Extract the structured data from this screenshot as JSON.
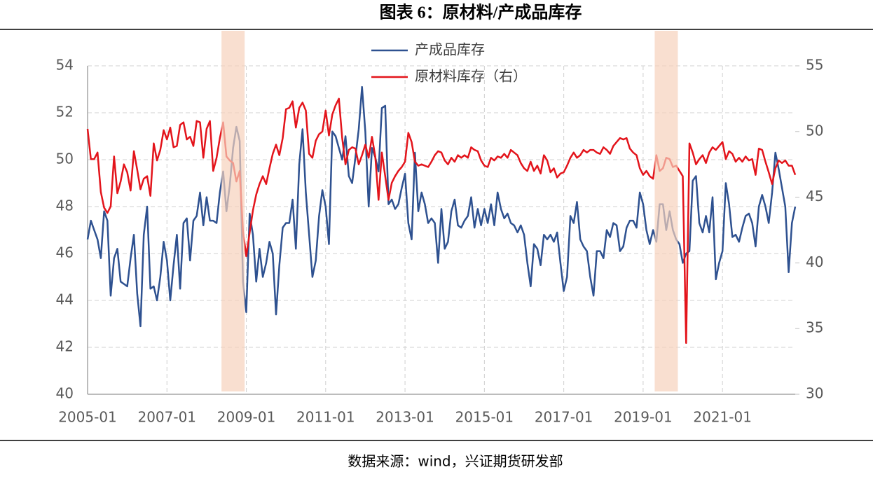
{
  "chart_data": {
    "type": "line",
    "title": "图表 6：原材料/产成品库存",
    "source": "数据来源：wind，兴证期货研发部",
    "x": [
      "2005-01",
      "2005-02",
      "2005-03",
      "2005-04",
      "2005-05",
      "2005-06",
      "2005-07",
      "2005-08",
      "2005-09",
      "2005-10",
      "2005-11",
      "2005-12",
      "2006-01",
      "2006-02",
      "2006-03",
      "2006-04",
      "2006-05",
      "2006-06",
      "2006-07",
      "2006-08",
      "2006-09",
      "2006-10",
      "2006-11",
      "2006-12",
      "2007-01",
      "2007-02",
      "2007-03",
      "2007-04",
      "2007-05",
      "2007-06",
      "2007-07",
      "2007-08",
      "2007-09",
      "2007-10",
      "2007-11",
      "2007-12",
      "2008-01",
      "2008-02",
      "2008-03",
      "2008-04",
      "2008-05",
      "2008-06",
      "2008-07",
      "2008-08",
      "2008-09",
      "2008-10",
      "2008-11",
      "2008-12",
      "2009-01",
      "2009-02",
      "2009-03",
      "2009-04",
      "2009-05",
      "2009-06",
      "2009-07",
      "2009-08",
      "2009-09",
      "2009-10",
      "2009-11",
      "2009-12",
      "2010-01",
      "2010-02",
      "2010-03",
      "2010-04",
      "2010-05",
      "2010-06",
      "2010-07",
      "2010-08",
      "2010-09",
      "2010-10",
      "2010-11",
      "2010-12",
      "2011-01",
      "2011-02",
      "2011-03",
      "2011-04",
      "2011-05",
      "2011-06",
      "2011-07",
      "2011-08",
      "2011-09",
      "2011-10",
      "2011-11",
      "2011-12",
      "2012-01",
      "2012-02",
      "2012-03",
      "2012-04",
      "2012-05",
      "2012-06",
      "2012-07",
      "2012-08",
      "2012-09",
      "2012-10",
      "2012-11",
      "2012-12",
      "2013-01",
      "2013-02",
      "2013-03",
      "2013-04",
      "2013-05",
      "2013-06",
      "2013-07",
      "2013-08",
      "2013-09",
      "2013-10",
      "2013-11",
      "2013-12",
      "2014-01",
      "2014-02",
      "2014-03",
      "2014-04",
      "2014-05",
      "2014-06",
      "2014-07",
      "2014-08",
      "2014-09",
      "2014-10",
      "2014-11",
      "2014-12",
      "2015-01",
      "2015-02",
      "2015-03",
      "2015-04",
      "2015-05",
      "2015-06",
      "2015-07",
      "2015-08",
      "2015-09",
      "2015-10",
      "2015-11",
      "2015-12",
      "2016-01",
      "2016-02",
      "2016-03",
      "2016-04",
      "2016-05",
      "2016-06",
      "2016-07",
      "2016-08",
      "2016-09",
      "2016-10",
      "2016-11",
      "2016-12",
      "2017-01",
      "2017-02",
      "2017-03",
      "2017-04",
      "2017-05",
      "2017-06",
      "2017-07",
      "2017-08",
      "2017-09",
      "2017-10",
      "2017-11",
      "2017-12",
      "2018-01",
      "2018-02",
      "2018-03",
      "2018-04",
      "2018-05",
      "2018-06",
      "2018-07",
      "2018-08",
      "2018-09",
      "2018-10",
      "2018-11",
      "2018-12",
      "2019-01",
      "2019-02",
      "2019-03",
      "2019-04",
      "2019-05",
      "2019-06",
      "2019-07",
      "2019-08",
      "2019-09",
      "2019-10",
      "2019-11",
      "2019-12",
      "2020-01",
      "2020-02",
      "2020-03",
      "2020-04",
      "2020-05",
      "2020-06",
      "2020-07",
      "2020-08",
      "2020-09",
      "2020-10",
      "2020-11",
      "2020-12",
      "2021-01",
      "2021-02",
      "2021-03",
      "2021-04",
      "2021-05",
      "2021-06",
      "2021-07",
      "2021-08",
      "2021-09",
      "2021-10",
      "2021-11",
      "2021-12",
      "2022-01",
      "2022-02",
      "2022-03",
      "2022-04",
      "2022-05",
      "2022-06",
      "2022-07",
      "2022-08",
      "2022-09",
      "2022-10",
      "2022-11"
    ],
    "xticks": [
      0,
      24,
      48,
      72,
      96,
      120,
      144,
      168,
      192
    ],
    "series": [
      {
        "name": "产成品库存",
        "color": "#2e5190",
        "axis": "y",
        "values": [
          46.6,
          47.4,
          47.0,
          46.6,
          45.8,
          47.8,
          47.4,
          44.2,
          45.8,
          46.2,
          44.8,
          44.7,
          44.6,
          45.8,
          46.8,
          44.3,
          42.9,
          46.8,
          48.0,
          44.5,
          44.6,
          44.0,
          45.0,
          46.5,
          45.7,
          44.0,
          45.5,
          46.8,
          44.5,
          47.3,
          47.5,
          45.7,
          47.4,
          47.6,
          48.6,
          47.2,
          48.4,
          47.4,
          47.4,
          47.3,
          48.6,
          49.5,
          47.8,
          48.9,
          50.5,
          51.4,
          50.8,
          44.8,
          43.5,
          47.7,
          46.8,
          44.8,
          46.2,
          45.0,
          45.6,
          46.5,
          46.0,
          43.4,
          45.5,
          47.1,
          47.3,
          47.3,
          48.3,
          46.2,
          49.8,
          51.3,
          48.6,
          46.8,
          45.0,
          45.7,
          47.6,
          48.7,
          48.0,
          46.4,
          51.2,
          51.0,
          50.5,
          50.0,
          51.0,
          49.3,
          49.0,
          50.1,
          51.3,
          53.1,
          51.2,
          48.0,
          50.5,
          50.1,
          49.5,
          52.2,
          52.3,
          48.1,
          48.3,
          47.9,
          48.1,
          48.8,
          49.4,
          47.3,
          46.6,
          50.3,
          47.8,
          48.6,
          48.1,
          47.3,
          47.5,
          47.3,
          45.6,
          47.9,
          46.2,
          46.5,
          47.8,
          48.3,
          47.2,
          47.1,
          47.4,
          47.6,
          48.4,
          47.1,
          47.9,
          47.2,
          47.9,
          47.3,
          48.1,
          47.2,
          48.6,
          47.9,
          47.5,
          47.7,
          47.3,
          47.2,
          46.9,
          47.2,
          46.8,
          45.6,
          44.6,
          46.4,
          46.2,
          45.5,
          46.8,
          46.6,
          46.8,
          46.5,
          46.9,
          45.6,
          44.4,
          45.0,
          47.6,
          47.3,
          48.2,
          46.6,
          46.3,
          46.1,
          45.0,
          44.2,
          46.1,
          46.1,
          45.8,
          47.0,
          46.7,
          47.3,
          47.2,
          46.1,
          46.3,
          47.1,
          47.4,
          47.4,
          47.1,
          48.6,
          48.1,
          47.0,
          46.4,
          47.0,
          46.5,
          48.1,
          48.1,
          47.0,
          47.8,
          47.0,
          46.6,
          46.4,
          45.6,
          46.0,
          46.1,
          49.1,
          49.3,
          47.3,
          46.9,
          47.6,
          46.9,
          48.4,
          44.9,
          45.6,
          46.1,
          49.0,
          48.1,
          46.7,
          46.8,
          46.5,
          47.1,
          47.6,
          47.7,
          47.3,
          46.3,
          48.0,
          48.5,
          48.0,
          47.3,
          48.6,
          50.3,
          49.6,
          48.8,
          48.0,
          45.2,
          47.3,
          48.0
        ]
      },
      {
        "name": "原材料库存（右）",
        "color": "#e3141b",
        "axis": "y2",
        "values": [
          50.2,
          47.9,
          47.9,
          48.4,
          45.4,
          44.2,
          43.8,
          44.3,
          48.1,
          45.3,
          46.2,
          47.5,
          46.9,
          45.5,
          48.5,
          47.1,
          45.6,
          46.4,
          46.6,
          45.1,
          49.1,
          47.8,
          48.6,
          50.1,
          49.4,
          50.3,
          48.8,
          48.9,
          50.5,
          50.7,
          49.4,
          49.6,
          48.9,
          50.8,
          50.7,
          48.0,
          50.2,
          50.8,
          47.0,
          48.0,
          49.5,
          50.7,
          48.1,
          47.8,
          47.6,
          46.2,
          47.0,
          42.4,
          40.5,
          42.3,
          44.0,
          45.2,
          46.0,
          46.6,
          46.0,
          47.2,
          48.3,
          49.0,
          48.2,
          49.5,
          51.7,
          51.8,
          52.3,
          50.3,
          51.8,
          52.2,
          51.6,
          48.3,
          48.0,
          49.3,
          49.8,
          50.0,
          51.6,
          49.7,
          51.3,
          52.0,
          52.5,
          49.5,
          47.5,
          48.6,
          48.8,
          48.7,
          47.5,
          48.2,
          49.0,
          48.0,
          49.6,
          48.1,
          44.8,
          48.4,
          46.6,
          44.8,
          46.1,
          46.6,
          47.0,
          47.3,
          47.7,
          49.9,
          49.2,
          47.7,
          47.4,
          47.5,
          47.4,
          47.3,
          47.7,
          48.2,
          48.5,
          48.4,
          47.8,
          47.5,
          48.0,
          47.7,
          48.2,
          48.0,
          48.2,
          48.0,
          48.8,
          48.6,
          48.5,
          47.8,
          47.4,
          47.3,
          48.0,
          47.8,
          48.1,
          48.0,
          48.3,
          48.0,
          48.6,
          48.4,
          48.2,
          47.6,
          47.2,
          47.0,
          47.7,
          47.0,
          47.4,
          46.8,
          48.2,
          47.8,
          46.9,
          47.2,
          46.5,
          46.8,
          46.9,
          47.4,
          48.0,
          48.4,
          48.0,
          48.2,
          48.6,
          48.4,
          48.6,
          48.6,
          48.4,
          48.3,
          48.8,
          48.6,
          48.3,
          48.9,
          49.2,
          49.5,
          49.4,
          49.5,
          48.7,
          48.4,
          48.2,
          47.2,
          46.7,
          47.0,
          46.6,
          46.4,
          48.2,
          47.0,
          47.2,
          48.0,
          47.9,
          47.3,
          47.4,
          47.0,
          46.6,
          33.9,
          49.1,
          48.4,
          47.5,
          47.9,
          48.2,
          47.6,
          48.4,
          48.8,
          48.6,
          48.9,
          49.2,
          47.9,
          48.5,
          48.3,
          47.7,
          48.0,
          47.7,
          48.1,
          47.8,
          47.9,
          46.7,
          48.7,
          48.6,
          47.7,
          46.9,
          46.0,
          47.2,
          47.8,
          47.6,
          47.8,
          47.4,
          47.4,
          46.7
        ]
      }
    ],
    "ylim": [
      40,
      54
    ],
    "yticks": [
      40,
      42,
      44,
      46,
      48,
      50,
      52,
      54
    ],
    "y2lim": [
      30,
      55
    ],
    "y2ticks": [
      30,
      35,
      40,
      45,
      50,
      55
    ],
    "grid": true,
    "shaded": [
      {
        "start": "2008-06",
        "end": "2008-12"
      },
      {
        "start": "2019-05",
        "end": "2019-11"
      }
    ],
    "shade_color": "#f7d2bc"
  }
}
